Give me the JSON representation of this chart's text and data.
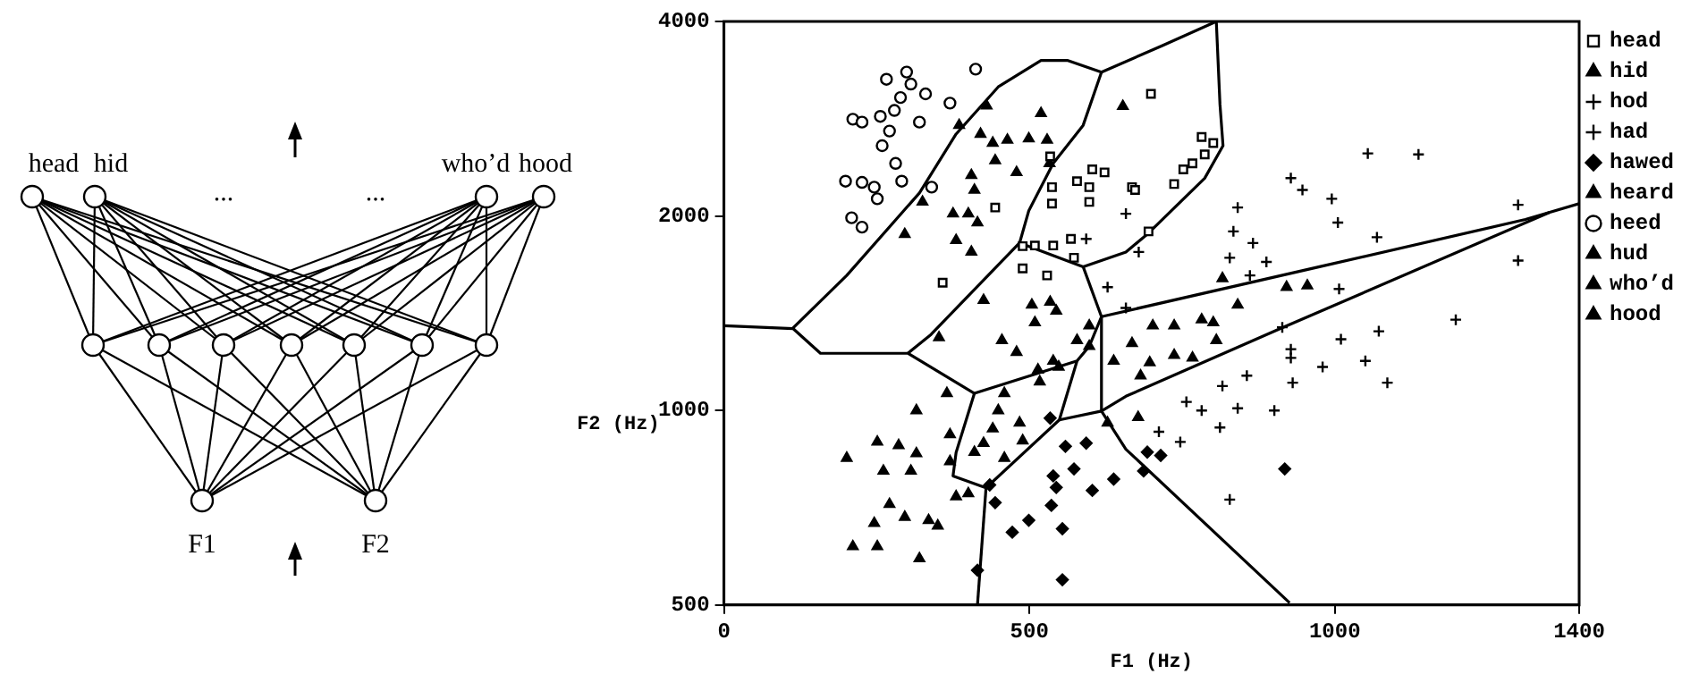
{
  "chart_data": [
    {
      "type": "other",
      "annotations": [
        "head",
        "hid",
        "...",
        "...",
        "who’d",
        "hood",
        "F1",
        "F2"
      ]
    },
    {
      "type": "scatter",
      "xlabel": "F1 (Hz)",
      "ylabel": "F2 (Hz)",
      "xlim": [
        0,
        1400
      ],
      "xticks": [
        0,
        500,
        1000,
        1400
      ],
      "ylim": [
        500,
        4000
      ],
      "yticks": [
        500,
        1000,
        2000,
        4000
      ],
      "log": "y",
      "legend": "right",
      "grid": false,
      "series": [
        {
          "name": "head",
          "color": "#000000",
          "marker": "square",
          "x": [
            444,
            537,
            537,
            534,
            578,
            603,
            623,
            598,
            598,
            668,
            489,
            509,
            539,
            568,
            573,
            489,
            529,
            358,
            699,
            782,
            801,
            787,
            767,
            752,
            737,
            673,
            695
          ],
          "values": [
            2061,
            2216,
            2090,
            2473,
            2264,
            2361,
            2336,
            2216,
            2103,
            2216,
            1796,
            1800,
            1800,
            1843,
            1723,
            1659,
            1618,
            1577,
            3090,
            2650,
            2594,
            2490,
            2412,
            2361,
            2241,
            2194,
            1893
          ]
        },
        {
          "name": "hid",
          "color": "#000000",
          "marker": "triangle",
          "x": [
            430,
            385,
            420,
            440,
            464,
            519,
            499,
            529,
            444,
            479,
            405,
            410,
            325,
            296,
            375,
            400,
            415,
            380,
            405,
            653,
            533
          ],
          "values": [
            2961,
            2763,
            2678,
            2594,
            2622,
            2883,
            2634,
            2622,
            2437,
            2336,
            2312,
            2194,
            2103,
            1874,
            2016,
            2016,
            1953,
            1834,
            1759,
            2957,
            2412
          ]
        },
        {
          "name": "hod",
          "color": "#000000",
          "marker": "cross",
          "x": [
            1300,
            1007,
            1198,
            914,
            1072,
            1010,
            928,
            928,
            980,
            1050,
            1086,
            931,
            856,
            816,
            782,
            841,
            901,
            812,
            747,
            712,
            757,
            828
          ],
          "values": [
            1706,
            1542,
            1382,
            1345,
            1326,
            1289,
            1244,
            1206,
            1168,
            1193,
            1104,
            1104,
            1132,
            1091,
            1000,
            1008,
            1000,
            941,
            894,
            927,
            1031,
            728
          ]
        },
        {
          "name": "had",
          "color": "#000000",
          "marker": "cross",
          "x": [
            1054,
            1137,
            928,
            947,
            995,
            1005,
            841,
            834,
            866,
            888,
            828,
            1069,
            1300,
            861,
            658,
            679,
            593,
            628,
            658
          ],
          "values": [
            2499,
            2490,
            2289,
            2194,
            2126,
            1953,
            2061,
            1893,
            1816,
            1698,
            1723,
            1854,
            2081,
            1618,
            2016,
            1759,
            1843,
            1552,
            1441
          ]
        },
        {
          "name": "hawed",
          "color": "#000000",
          "marker": "diamond",
          "x": [
            918,
            687,
            715,
            693,
            559,
            593,
            539,
            544,
            573,
            603,
            638,
            536,
            499,
            472,
            554,
            554,
            415,
            435,
            444,
            534
          ],
          "values": [
            812,
            806,
            852,
            862,
            880,
            890,
            792,
            760,
            812,
            752,
            783,
            713,
            676,
            648,
            656,
            547,
            566,
            767,
            720,
            973
          ]
        },
        {
          "name": "heard",
          "color": "#000000",
          "marker": "triangle",
          "x": [
            425,
            504,
            534,
            544,
            509,
            455,
            479,
            539,
            578,
            517,
            352,
            598,
            548,
            598
          ],
          "values": [
            1481,
            1457,
            1472,
            1426,
            1368,
            1284,
            1231,
            1193,
            1284,
            1108,
            1297,
            1353,
            1168,
            1257
          ]
        },
        {
          "name": "heed",
          "color": "#000000",
          "marker": "circle",
          "x": [
            266,
            299,
            306,
            289,
            330,
            370,
            412,
            211,
            226,
            256,
            279,
            271,
            320,
            259,
            281,
            291,
            199,
            226,
            246,
            251,
            340,
            209,
            226
          ],
          "values": [
            3255,
            3340,
            3200,
            3050,
            3090,
            2990,
            3375,
            2823,
            2794,
            2852,
            2913,
            2707,
            2794,
            2569,
            2412,
            2264,
            2264,
            2254,
            2216,
            2126,
            2216,
            1987,
            1922
          ]
        },
        {
          "name": "hud",
          "color": "#000000",
          "marker": "triangle",
          "x": [
            921,
            955,
            841,
            801,
            782,
            816,
            737,
            697,
            767,
            806,
            737,
            702,
            668,
            682,
            638,
            678,
            628
          ],
          "values": [
            1552,
            1560,
            1457,
            1368,
            1382,
            1601,
            1218,
            1186,
            1206,
            1284,
            1353,
            1353,
            1270,
            1132,
            1193,
            976,
            957
          ]
        },
        {
          "name": "who’d",
          "color": "#000000",
          "marker": "triangle",
          "x": [
            201,
            251,
            286,
            315,
            261,
            306,
            315,
            271,
            246,
            296,
            335,
            211,
            251,
            320,
            370,
            365,
            380
          ],
          "values": [
            844,
            894,
            883,
            858,
            806,
            806,
            1000,
            716,
            669,
            684,
            676,
            616,
            616,
            590,
            834,
            1063,
            736
          ]
        },
        {
          "name": "hood",
          "color": "#000000",
          "marker": "triangle",
          "x": [
            459,
            484,
            425,
            459,
            440,
            410,
            489,
            350,
            400,
            370,
            514,
            449
          ],
          "values": [
            1063,
            957,
            890,
            844,
            937,
            862,
            898,
            663,
            744,
            918,
            1156,
            1000
          ]
        },
        {
          "type": "line",
          "color": "#000000",
          "x": [
            0,
            113,
            158,
            301,
            410
          ],
          "values": [
            1353,
            1339,
            1226,
            1226,
            1063
          ]
        },
        {
          "type": "line",
          "color": "#000000",
          "x": [
            112,
            201,
            320,
            380,
            449,
            519,
            562,
            618
          ],
          "values": [
            1339,
            1618,
            2171,
            2678,
            3168,
            3482,
            3482,
            3338
          ]
        },
        {
          "type": "line",
          "color": "#000000",
          "x": [
            618,
            588,
            539,
            499,
            484,
            339,
            301
          ],
          "values": [
            3338,
            2763,
            2412,
            2038,
            1817,
            1311,
            1226
          ]
        },
        {
          "type": "line",
          "color": "#000000",
          "x": [
            618,
            717,
            806
          ],
          "values": [
            3338,
            3668,
            4000
          ]
        },
        {
          "type": "line",
          "color": "#000000",
          "x": [
            806,
            812,
            817,
            787,
            693,
            658,
            588
          ],
          "values": [
            4000,
            2975,
            2569,
            2288,
            1874,
            1759,
            1669
          ]
        },
        {
          "type": "line",
          "color": "#000000",
          "x": [
            484,
            588,
            618,
            598,
            578,
            410
          ],
          "values": [
            1817,
            1669,
            1397,
            1257,
            1193,
            1063
          ]
        },
        {
          "type": "line",
          "color": "#000000",
          "x": [
            618,
            975,
            1312,
            1400
          ],
          "values": [
            1397,
            1669,
            1975,
            2090
          ]
        },
        {
          "type": "line",
          "color": "#000000",
          "x": [
            578,
            549,
            429,
            375,
            380,
            410
          ],
          "values": [
            1193,
            967,
            759,
            792,
            861,
            1063
          ]
        },
        {
          "type": "line",
          "color": "#000000",
          "x": [
            429,
            415
          ],
          "values": [
            759,
            500
          ]
        },
        {
          "type": "line",
          "color": "#000000",
          "x": [
            549,
            618,
            658,
            911,
            1351
          ],
          "values": [
            967,
            998,
            1052,
            1339,
            2025
          ]
        },
        {
          "type": "line",
          "color": "#000000",
          "x": [
            618,
            658,
            926
          ],
          "values": [
            998,
            871,
            504
          ]
        },
        {
          "type": "line",
          "color": "#000000",
          "x": [
            618,
            618
          ],
          "values": [
            1397,
            998
          ]
        }
      ]
    }
  ]
}
